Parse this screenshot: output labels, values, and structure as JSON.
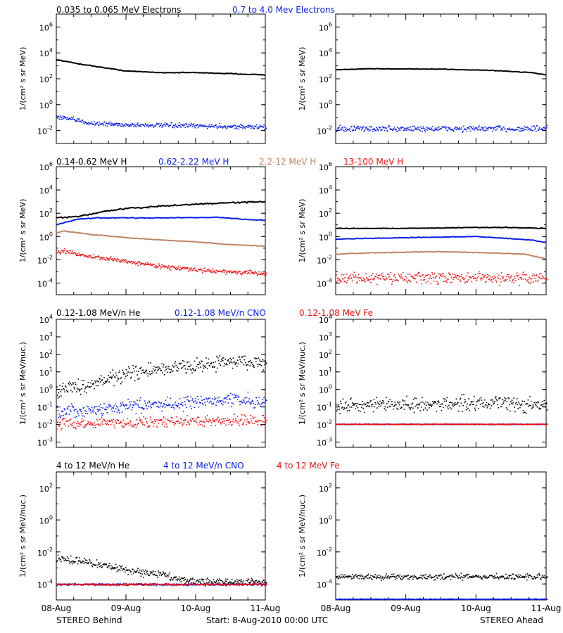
{
  "colors": {
    "black": "#000000",
    "blue": "#0a1ee6",
    "tan": "#c08366",
    "red": "#ee1111"
  },
  "footer": {
    "left": "STEREO Behind",
    "center": "Start:  8-Aug-2010 00:00 UTC",
    "right": "STEREO Ahead"
  },
  "chart_data": [
    {
      "type": "scatter",
      "panel": "electrons",
      "scale": "log",
      "legend": [
        "0.035 to 0.065 MeV Electrons",
        "0.7 to 4.0 Mev Electrons"
      ],
      "ylabel": "1/(cm² s sr MeV)",
      "ylim": [
        0.001,
        10000000
      ],
      "yticks": [
        {
          "v": 0.01,
          "m": "10",
          "e": "-2"
        },
        {
          "v": 1,
          "m": "10",
          "e": "0"
        },
        {
          "v": 100,
          "m": "10",
          "e": "2"
        },
        {
          "v": 10000,
          "m": "10",
          "e": "4"
        },
        {
          "v": 1000000,
          "m": "10",
          "e": "6"
        }
      ],
      "xlim": [
        "08-Aug",
        "11-Aug"
      ],
      "behind": [
        {
          "name": "0.035 to 0.065 MeV Electrons",
          "color": "black",
          "style": "line",
          "noise": 0.05,
          "points": [
            [
              0,
              3000
            ],
            [
              0.3,
              1500
            ],
            [
              0.7,
              700
            ],
            [
              1.0,
              400
            ],
            [
              1.5,
              300
            ],
            [
              2.0,
              300
            ],
            [
              2.5,
              250
            ],
            [
              3.0,
              200
            ]
          ]
        },
        {
          "name": "0.7 to 4.0 Mev Electrons",
          "color": "blue",
          "style": "dots",
          "noise": 0.15,
          "points": [
            [
              0,
              0.12
            ],
            [
              0.2,
              0.08
            ],
            [
              0.5,
              0.04
            ],
            [
              1.0,
              0.03
            ],
            [
              2.0,
              0.025
            ],
            [
              3.0,
              0.02
            ]
          ]
        }
      ],
      "ahead": [
        {
          "name": "0.035 to 0.065 MeV Electrons",
          "color": "black",
          "style": "line",
          "noise": 0.04,
          "points": [
            [
              0,
              500
            ],
            [
              0.5,
              600
            ],
            [
              1.5,
              550
            ],
            [
              2.2,
              450
            ],
            [
              2.8,
              300
            ],
            [
              3.0,
              200
            ]
          ]
        },
        {
          "name": "0.7 to 4.0 Mev Electrons",
          "color": "blue",
          "style": "dots",
          "noise": 0.2,
          "points": [
            [
              0,
              0.015
            ],
            [
              1.5,
              0.015
            ],
            [
              3.0,
              0.015
            ]
          ]
        }
      ]
    },
    {
      "type": "scatter",
      "panel": "protons",
      "scale": "log",
      "legend": [
        "0.14-0.62 MeV H",
        "0.62-2.22 MeV H",
        "2.2-12 MeV H",
        "13-100 MeV H"
      ],
      "ylabel": "1/(cm² s sr MeV)",
      "ylim": [
        1e-05,
        1000000
      ],
      "yticks": [
        {
          "v": 0.0001,
          "m": "10",
          "e": "-4"
        },
        {
          "v": 0.01,
          "m": "10",
          "e": "-2"
        },
        {
          "v": 1,
          "m": "10",
          "e": "0"
        },
        {
          "v": 100,
          "m": "10",
          "e": "2"
        },
        {
          "v": 10000,
          "m": "10",
          "e": "4"
        },
        {
          "v": 1000000,
          "m": "10",
          "e": "6"
        }
      ],
      "xlim": [
        "08-Aug",
        "11-Aug"
      ],
      "behind": [
        {
          "name": "0.14-0.62 MeV H",
          "color": "black",
          "style": "line",
          "noise": 0.1,
          "points": [
            [
              0,
              40
            ],
            [
              0.3,
              50
            ],
            [
              0.7,
              150
            ],
            [
              1.0,
              250
            ],
            [
              1.5,
              400
            ],
            [
              2.0,
              600
            ],
            [
              2.5,
              800
            ],
            [
              3.0,
              1000
            ]
          ]
        },
        {
          "name": "0.62-2.22 MeV H",
          "color": "blue",
          "style": "line",
          "noise": 0.06,
          "points": [
            [
              0,
              10
            ],
            [
              0.3,
              30
            ],
            [
              0.6,
              40
            ],
            [
              1.5,
              40
            ],
            [
              2.3,
              45
            ],
            [
              2.7,
              30
            ],
            [
              3.0,
              25
            ]
          ]
        },
        {
          "name": "2.2-12 MeV H",
          "color": "tan",
          "style": "line",
          "noise": 0.04,
          "points": [
            [
              0,
              2
            ],
            [
              0.1,
              3
            ],
            [
              0.5,
              1.5
            ],
            [
              1.0,
              0.8
            ],
            [
              1.5,
              0.5
            ],
            [
              2.0,
              0.35
            ],
            [
              2.5,
              0.2
            ],
            [
              3.0,
              0.15
            ]
          ]
        },
        {
          "name": "13-100 MeV H",
          "color": "red",
          "style": "dots",
          "noise": 0.15,
          "points": [
            [
              0,
              0.05
            ],
            [
              0.1,
              0.06
            ],
            [
              0.5,
              0.02
            ],
            [
              1.0,
              0.008
            ],
            [
              1.5,
              0.003
            ],
            [
              2.0,
              0.0015
            ],
            [
              2.5,
              0.001
            ],
            [
              3.0,
              0.0007
            ]
          ]
        }
      ],
      "ahead": [
        {
          "name": "0.14-0.62 MeV H",
          "color": "black",
          "style": "line",
          "noise": 0.05,
          "points": [
            [
              0,
              5
            ],
            [
              1.0,
              5
            ],
            [
              2.0,
              6
            ],
            [
              2.5,
              6
            ],
            [
              3.0,
              5
            ]
          ]
        },
        {
          "name": "0.62-2.22 MeV H",
          "color": "blue",
          "style": "line",
          "noise": 0.05,
          "points": [
            [
              0,
              0.6
            ],
            [
              1.0,
              0.8
            ],
            [
              2.0,
              1.0
            ],
            [
              2.4,
              0.7
            ],
            [
              2.8,
              0.5
            ],
            [
              3.0,
              0.3
            ]
          ]
        },
        {
          "name": "2.2-12 MeV H",
          "color": "tan",
          "style": "line",
          "noise": 0.05,
          "points": [
            [
              0,
              0.03
            ],
            [
              0.5,
              0.04
            ],
            [
              1.5,
              0.05
            ],
            [
              2.2,
              0.04
            ],
            [
              2.7,
              0.03
            ],
            [
              3.0,
              0.012
            ]
          ]
        },
        {
          "name": "13-100 MeV H",
          "color": "red",
          "style": "dots",
          "noise": 0.4,
          "points": [
            [
              0,
              0.0003
            ],
            [
              1.5,
              0.0003
            ],
            [
              3.0,
              0.0003
            ]
          ]
        }
      ]
    },
    {
      "type": "scatter",
      "panel": "ions-low",
      "scale": "log",
      "legend": [
        "0.12-1.08 MeV/n He",
        "0.12-1.08 MeV/n CNO",
        "0.12-1.08 MeV Fe"
      ],
      "ylabel": "1/(cm² s sr MeV/nuc.)",
      "ylim": [
        0.0005,
        10000
      ],
      "yticks": [
        {
          "v": 0.001,
          "m": "10",
          "e": "-3"
        },
        {
          "v": 0.01,
          "m": "10",
          "e": "-2"
        },
        {
          "v": 0.1,
          "m": "10",
          "e": "-1"
        },
        {
          "v": 1,
          "m": "10",
          "e": "0"
        },
        {
          "v": 10,
          "m": "10",
          "e": "1"
        },
        {
          "v": 100,
          "m": "10",
          "e": "2"
        },
        {
          "v": 1000,
          "m": "10",
          "e": "3"
        },
        {
          "v": 10000,
          "m": "10",
          "e": "4"
        }
      ],
      "xlim": [
        "08-Aug",
        "11-Aug"
      ],
      "behind": [
        {
          "name": "0.12-1.08 MeV/n He",
          "color": "black",
          "style": "dots",
          "noise": 0.35,
          "points": [
            [
              0,
              1
            ],
            [
              0.3,
              1.5
            ],
            [
              0.7,
              4
            ],
            [
              1.0,
              8
            ],
            [
              1.5,
              15
            ],
            [
              2.0,
              25
            ],
            [
              2.5,
              40
            ],
            [
              2.8,
              40
            ],
            [
              3.0,
              20
            ]
          ]
        },
        {
          "name": "0.12-1.08 MeV/n CNO",
          "color": "blue",
          "style": "dots",
          "noise": 0.3,
          "points": [
            [
              0,
              0.05
            ],
            [
              0.5,
              0.07
            ],
            [
              1.0,
              0.12
            ],
            [
              1.5,
              0.15
            ],
            [
              2.0,
              0.2
            ],
            [
              2.5,
              0.3
            ],
            [
              3.0,
              0.2
            ]
          ]
        },
        {
          "name": "0.12-1.08 MeV Fe",
          "color": "red",
          "style": "dots",
          "noise": 0.25,
          "points": [
            [
              0,
              0.012
            ],
            [
              1.5,
              0.015
            ],
            [
              3.0,
              0.02
            ]
          ]
        }
      ],
      "ahead": [
        {
          "name": "0.12-1.08 MeV/n He",
          "color": "black",
          "style": "dots",
          "noise": 0.35,
          "points": [
            [
              0,
              0.12
            ],
            [
              1.5,
              0.15
            ],
            [
              2.0,
              0.2
            ],
            [
              3.0,
              0.12
            ]
          ]
        },
        {
          "name": "0.12-1.08 MeV/n CNO",
          "color": "blue",
          "style": "dots",
          "noise": 0.02,
          "points": [
            [
              0,
              0.011
            ],
            [
              3.0,
              0.011
            ]
          ]
        },
        {
          "name": "0.12-1.08 MeV Fe",
          "color": "red",
          "style": "dots",
          "noise": 0.02,
          "points": [
            [
              0,
              0.011
            ],
            [
              3.0,
              0.011
            ]
          ]
        }
      ]
    },
    {
      "type": "scatter",
      "panel": "ions-high",
      "scale": "log",
      "legend": [
        "4 to 12 MeV/n He",
        "4 to 12 MeV/n CNO",
        "4 to 12 MeV Fe"
      ],
      "ylabel": "1/(cm² s sr MeV/nuc.)",
      "ylim": [
        1e-05,
        1000
      ],
      "yticks": [
        {
          "v": 0.0001,
          "m": "10",
          "e": "-4"
        },
        {
          "v": 0.01,
          "m": "10",
          "e": "-2"
        },
        {
          "v": 1,
          "m": "10",
          "e": "0"
        },
        {
          "v": 100,
          "m": "10",
          "e": "2"
        }
      ],
      "xticks": [
        "08-Aug",
        "09-Aug",
        "10-Aug",
        "11-Aug"
      ],
      "xlim": [
        "08-Aug",
        "11-Aug"
      ],
      "behind": [
        {
          "name": "4 to 12 MeV/n He",
          "color": "black",
          "style": "dots",
          "noise": 0.2,
          "points": [
            [
              0,
              0.004
            ],
            [
              0.3,
              0.003
            ],
            [
              0.7,
              0.0015
            ],
            [
              1.0,
              0.0008
            ],
            [
              1.5,
              0.0004
            ],
            [
              1.8,
              0.0002
            ],
            [
              2.2,
              0.00015
            ],
            [
              3.0,
              0.00015
            ]
          ]
        },
        {
          "name": "4 to 12 MeV/n CNO",
          "color": "blue",
          "style": "dots",
          "noise": 0.05,
          "points": [
            [
              0,
              0.0001
            ],
            [
              3.0,
              0.0001
            ]
          ]
        },
        {
          "name": "4 to 12 MeV Fe",
          "color": "red",
          "style": "dots",
          "noise": 0.05,
          "points": [
            [
              0,
              0.0001
            ],
            [
              0.6,
              0.0001
            ]
          ]
        }
      ],
      "ahead": [
        {
          "name": "4 to 12 MeV/n He",
          "color": "black",
          "style": "dots",
          "noise": 0.15,
          "points": [
            [
              0,
              0.0003
            ],
            [
              1.5,
              0.0003
            ],
            [
              2.2,
              0.0003
            ],
            [
              3.0,
              0.0003
            ]
          ]
        },
        {
          "name": "4 to 12 MeV/n CNO",
          "color": "blue",
          "style": "dots",
          "noise": 0.02,
          "points": [
            [
              0,
              1.2e-05
            ],
            [
              3.0,
              1.2e-05
            ]
          ]
        }
      ]
    }
  ]
}
